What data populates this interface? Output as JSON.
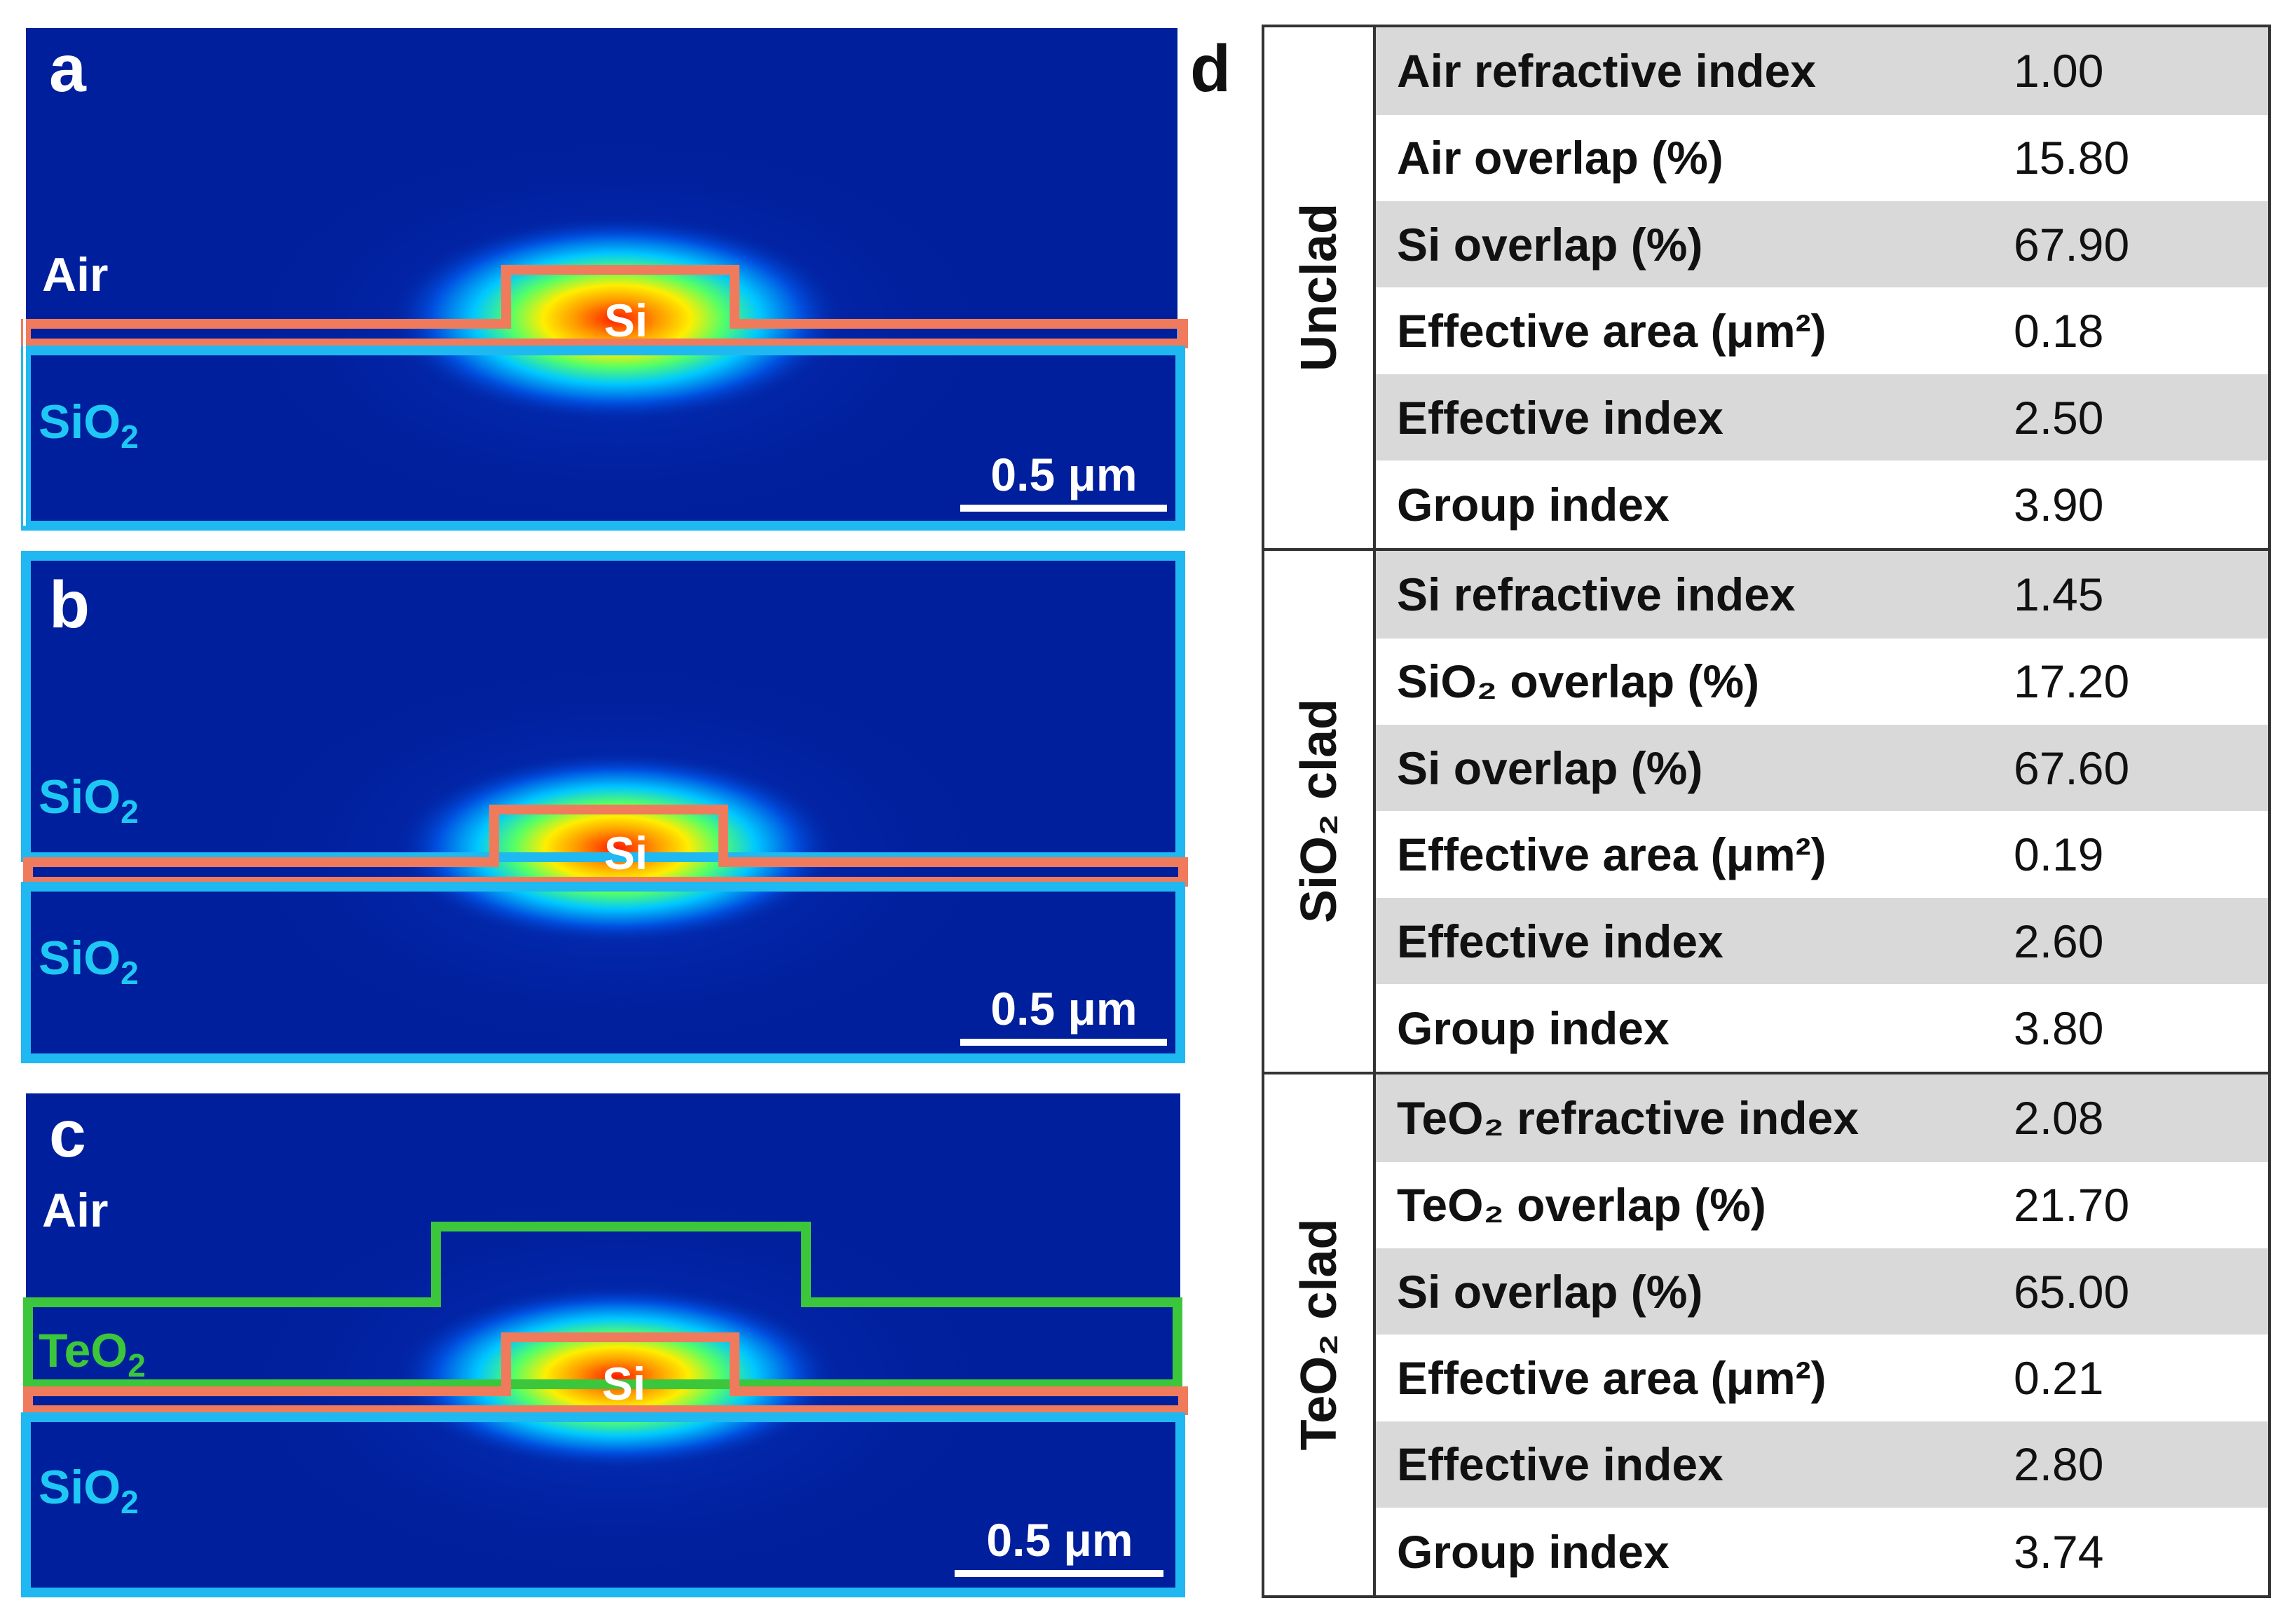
{
  "panels": [
    {
      "letter": "a",
      "label_top": "Air",
      "label_bottom": "SiO2",
      "core_label": "Si",
      "scale_bar": "0.5 μm",
      "colors": {
        "background": "#001f9c",
        "si_outline": "#f07b5c",
        "sio2_outline": "#1fb8f0"
      }
    },
    {
      "letter": "b",
      "label_top": "SiO2",
      "label_bottom": "SiO2",
      "core_label": "Si",
      "scale_bar": "0.5 μm",
      "colors": {
        "background": "#001f9c",
        "si_outline": "#f07b5c",
        "sio2_outline": "#1fb8f0"
      }
    },
    {
      "letter": "c",
      "label_top": "Air",
      "label_mid": "TeO2",
      "label_bottom": "SiO2",
      "core_label": "Si",
      "scale_bar": "0.5 μm",
      "colors": {
        "background": "#001f9c",
        "si_outline": "#f07b5c",
        "sio2_outline": "#1fb8f0",
        "teo2_outline": "#3cc63c"
      }
    }
  ],
  "table": {
    "letter": "d",
    "groups": [
      {
        "name": "Unclad",
        "rows": [
          {
            "label": "Air refractive index",
            "value": "1.00"
          },
          {
            "label": "Air overlap (%)",
            "value": "15.80"
          },
          {
            "label": "Si overlap (%)",
            "value": "67.90"
          },
          {
            "label": "Effective area (μm²)",
            "value": "0.18"
          },
          {
            "label": "Effective index",
            "value": "2.50"
          },
          {
            "label": "Group index",
            "value": "3.90"
          }
        ]
      },
      {
        "name": "SiO₂ clad",
        "rows": [
          {
            "label": "Si refractive index",
            "value": "1.45"
          },
          {
            "label": "SiO₂ overlap (%)",
            "value": "17.20"
          },
          {
            "label": "Si overlap (%)",
            "value": "67.60"
          },
          {
            "label": "Effective area (μm²)",
            "value": "0.19"
          },
          {
            "label": "Effective index",
            "value": "2.60"
          },
          {
            "label": "Group index",
            "value": "3.80"
          }
        ]
      },
      {
        "name": "TeO₂ clad",
        "rows": [
          {
            "label": "TeO₂ refractive index",
            "value": "2.08"
          },
          {
            "label": "TeO₂ overlap (%)",
            "value": "21.70"
          },
          {
            "label": "Si overlap (%)",
            "value": "65.00"
          },
          {
            "label": "Effective area (μm²)",
            "value": "0.21"
          },
          {
            "label": "Effective index",
            "value": "2.80"
          },
          {
            "label": "Group index",
            "value": "3.74"
          }
        ]
      }
    ]
  }
}
